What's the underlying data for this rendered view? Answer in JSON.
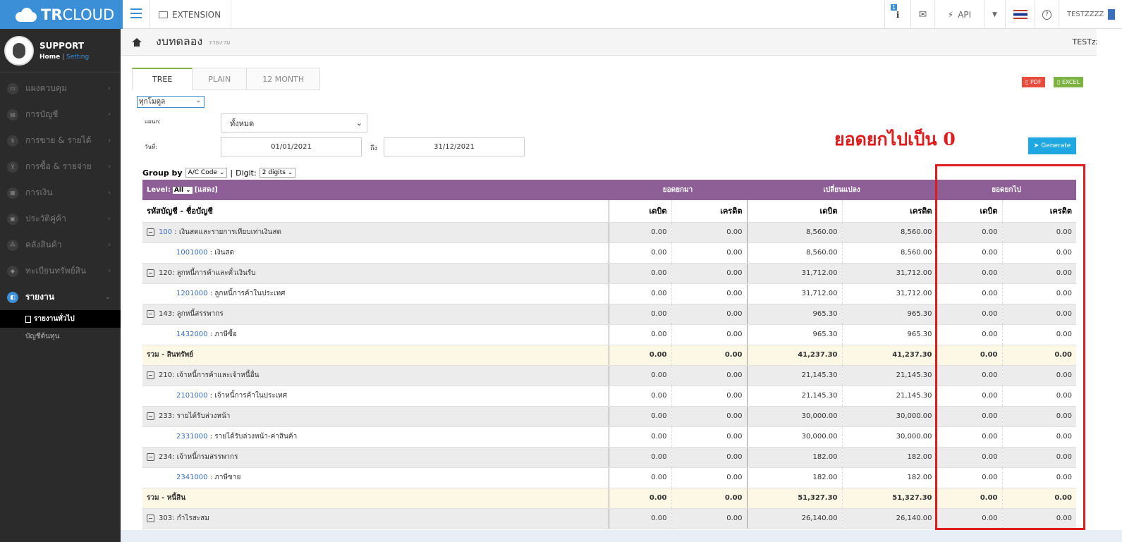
{
  "app": {
    "brand_bold": "TR",
    "brand_light": "CLOUD",
    "extension": "EXTENSION",
    "api": "API",
    "user": "TESTZZZZ",
    "badge": "1"
  },
  "profile": {
    "name": "SUPPORT",
    "home": "Home",
    "sep": "|",
    "setting": "Setting"
  },
  "sidebar": {
    "items": [
      {
        "label": "แผงควบคุม",
        "icon": "monitor-icon"
      },
      {
        "label": "การบัญชี",
        "icon": "book-icon"
      },
      {
        "label": "การขาย & รายได้",
        "icon": "dollar-icon"
      },
      {
        "label": "การซื้อ & รายจ่าย",
        "icon": "cart-icon"
      },
      {
        "label": "การเงิน",
        "icon": "calendar-icon"
      },
      {
        "label": "ประวัติคู่ค้า",
        "icon": "contact-icon"
      },
      {
        "label": "คลังสินค้า",
        "icon": "boxes-icon"
      },
      {
        "label": "ทะเบียนทรัพย์สิน",
        "icon": "diamond-icon"
      },
      {
        "label": "รายงาน",
        "icon": "report-icon"
      }
    ],
    "sub_current": "รายงานทั่วไป",
    "sub_other": "บัญชีต้นทุน"
  },
  "page": {
    "title": "งบทดลอง",
    "subtitle": "รายงาน",
    "user": "TESTzzzz"
  },
  "tabs": [
    "TREE",
    "PLAIN",
    "12 MONTH"
  ],
  "buttons": {
    "pdf": "PDF",
    "excel": "EXCEL",
    "generate": "Generate"
  },
  "filters": {
    "scope": "ทุกโมดูล",
    "dept_label": "แผนก:",
    "dept_value": "ทั้งหมด",
    "date_label": "วันที่:",
    "date_from": "01/01/2021",
    "to_label": "ถึง",
    "date_to": "31/12/2021"
  },
  "annotation": "ยอดยกไปเป็น 0",
  "groupby": {
    "label": "Group by",
    "value": "A/C Code",
    "digit_label": "Digit:",
    "digit_value": "2 digits"
  },
  "table": {
    "level_label": "Level:",
    "level_value": "All",
    "show_label": "[แสดง]",
    "group_headers": [
      "ยอดยกมา",
      "เปลี่ยนแปลง",
      "ยอดยกไป"
    ],
    "col_account": "รหัสบัญชี - ชื่อบัญชี",
    "col_debit": "เดบิต",
    "col_credit": "เครดิต",
    "rows": [
      {
        "type": "grp",
        "code": "100",
        "name": " : เงินสดและรายการเทียบเท่าเงินสด",
        "v": [
          "0.00",
          "0.00",
          "8,560.00",
          "8,560.00",
          "0.00",
          "0.00"
        ]
      },
      {
        "type": "leaf",
        "code": "1001000",
        "name": " : เงินสด",
        "v": [
          "0.00",
          "0.00",
          "8,560.00",
          "8,560.00",
          "0.00",
          "0.00"
        ]
      },
      {
        "type": "grp",
        "code": "",
        "name": "120: ลูกหนี้การค้าและตั๋วเงินรับ",
        "v": [
          "0.00",
          "0.00",
          "31,712.00",
          "31,712.00",
          "0.00",
          "0.00"
        ]
      },
      {
        "type": "leaf",
        "code": "1201000",
        "name": " : ลูกหนี้การค้าในประเทศ",
        "v": [
          "0.00",
          "0.00",
          "31,712.00",
          "31,712.00",
          "0.00",
          "0.00"
        ]
      },
      {
        "type": "grp",
        "code": "",
        "name": "143: ลูกหนี้สรรพากร",
        "v": [
          "0.00",
          "0.00",
          "965.30",
          "965.30",
          "0.00",
          "0.00"
        ]
      },
      {
        "type": "leaf",
        "code": "1432000",
        "name": " : ภาษีซื้อ",
        "v": [
          "0.00",
          "0.00",
          "965.30",
          "965.30",
          "0.00",
          "0.00"
        ]
      },
      {
        "type": "tot",
        "code": "",
        "name": "รวม - สินทรัพย์",
        "v": [
          "0.00",
          "0.00",
          "41,237.30",
          "41,237.30",
          "0.00",
          "0.00"
        ]
      },
      {
        "type": "grp",
        "code": "",
        "name": "210: เจ้าหนี้การค้าและเจ้าหนี้อื่น",
        "v": [
          "0.00",
          "0.00",
          "21,145.30",
          "21,145.30",
          "0.00",
          "0.00"
        ]
      },
      {
        "type": "leaf",
        "code": "2101000",
        "name": " : เจ้าหนี้การค้าในประเทศ",
        "v": [
          "0.00",
          "0.00",
          "21,145.30",
          "21,145.30",
          "0.00",
          "0.00"
        ]
      },
      {
        "type": "grp",
        "code": "",
        "name": "233: รายได้รับล่วงหน้า",
        "v": [
          "0.00",
          "0.00",
          "30,000.00",
          "30,000.00",
          "0.00",
          "0.00"
        ]
      },
      {
        "type": "leaf",
        "code": "2331000",
        "name": " : รายได้รับล่วงหน้า-ค่าสินค้า",
        "v": [
          "0.00",
          "0.00",
          "30,000.00",
          "30,000.00",
          "0.00",
          "0.00"
        ]
      },
      {
        "type": "grp",
        "code": "",
        "name": "234: เจ้าหนี้กรมสรรพากร",
        "v": [
          "0.00",
          "0.00",
          "182.00",
          "182.00",
          "0.00",
          "0.00"
        ]
      },
      {
        "type": "leaf",
        "code": "2341000",
        "name": " : ภาษีขาย",
        "v": [
          "0.00",
          "0.00",
          "182.00",
          "182.00",
          "0.00",
          "0.00"
        ]
      },
      {
        "type": "tot",
        "code": "",
        "name": "รวม - หนี้สิน",
        "v": [
          "0.00",
          "0.00",
          "51,327.30",
          "51,327.30",
          "0.00",
          "0.00"
        ]
      },
      {
        "type": "grp",
        "code": "",
        "name": "303: กำไรสะสม",
        "v": [
          "0.00",
          "0.00",
          "26,140.00",
          "26,140.00",
          "0.00",
          "0.00"
        ]
      }
    ]
  },
  "colors": {
    "brand_blue": "#3a8fd6",
    "header_purple": "#8e5f96",
    "annotation_red": "#e01b1b",
    "sidebar": "#2b2b2b"
  }
}
